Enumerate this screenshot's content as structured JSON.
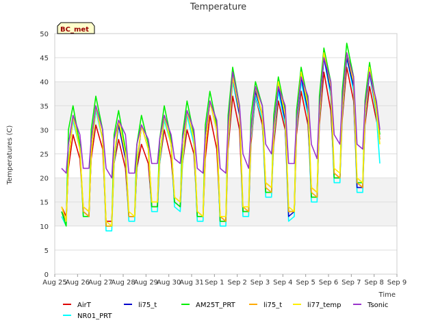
{
  "chart_data": {
    "type": "line",
    "title": "Temperature",
    "xlabel": "Time",
    "ylabel": "Temperatures (C)",
    "ylim": [
      0,
      50
    ],
    "yticks": [
      0,
      5,
      10,
      15,
      20,
      25,
      30,
      35,
      40,
      45,
      50
    ],
    "xticks": [
      "Aug 25",
      "Aug 26",
      "Aug 27",
      "Aug 28",
      "Aug 29",
      "Aug 30",
      "Aug 31",
      "Sep 1",
      "Sep 2",
      "Sep 3",
      "Sep 4",
      "Sep 5",
      "Sep 6",
      "Sep 7",
      "Sep 8",
      "Sep 9"
    ],
    "grid": true,
    "legend_position": "bottom",
    "badge": "BC_met",
    "x_day_index": [
      0.3,
      0.5,
      0.6,
      0.8,
      1.1,
      1.25,
      1.5,
      1.6,
      1.8,
      2.1,
      2.25,
      2.5,
      2.6,
      2.8,
      3.1,
      3.25,
      3.5,
      3.6,
      3.8,
      4.1,
      4.25,
      4.5,
      4.6,
      4.8,
      5.1,
      5.25,
      5.5,
      5.6,
      5.8,
      6.1,
      6.25,
      6.5,
      6.6,
      6.8,
      7.1,
      7.25,
      7.5,
      7.6,
      7.8,
      8.1,
      8.25,
      8.5,
      8.6,
      8.8,
      9.1,
      9.25,
      9.5,
      9.6,
      9.8,
      10.1,
      10.25,
      10.5,
      10.6,
      10.8,
      11.1,
      11.25,
      11.5,
      11.6,
      11.8,
      12.1,
      12.25,
      12.5,
      12.6,
      12.8,
      13.1,
      13.25,
      13.5,
      13.6,
      13.8,
      14.1,
      14.25
    ],
    "series": [
      {
        "name": "AirT",
        "color": "#dd0000",
        "values": [
          14,
          12,
          22,
          29,
          24,
          14,
          13,
          24,
          31,
          26,
          11,
          11,
          23,
          28,
          22,
          12,
          12,
          22,
          27,
          23,
          14,
          14,
          23,
          30,
          24,
          16,
          15,
          23,
          30,
          25,
          13,
          12,
          24,
          33,
          26,
          12,
          11,
          26,
          37,
          30,
          13,
          13,
          27,
          37,
          31,
          19,
          18,
          27,
          36,
          30,
          13,
          13,
          29,
          38,
          31,
          18,
          17,
          31,
          42,
          34,
          21,
          20,
          32,
          43,
          36,
          19,
          18,
          31,
          39,
          32,
          29
        ]
      },
      {
        "name": "NR01_PRT",
        "color": "#00ffff",
        "values": [
          12,
          10,
          24,
          32,
          26,
          12,
          12,
          25,
          34,
          28,
          9,
          9,
          23,
          31,
          24,
          11,
          11,
          22,
          31,
          26,
          13,
          13,
          23,
          32,
          27,
          14,
          13,
          23,
          33,
          27,
          11,
          11,
          26,
          36,
          30,
          10,
          10,
          27,
          40,
          33,
          12,
          12,
          28,
          37,
          32,
          16,
          16,
          28,
          38,
          31,
          11,
          12,
          30,
          40,
          33,
          15,
          15,
          32,
          45,
          37,
          19,
          19,
          33,
          45,
          38,
          17,
          17,
          32,
          42,
          33,
          23
        ]
      },
      {
        "name": "li75_t",
        "color": "#0000cc",
        "values": [
          13,
          11,
          23,
          33,
          26,
          13,
          12,
          25,
          35,
          28,
          10,
          10,
          24,
          31,
          24,
          12,
          12,
          22,
          31,
          26,
          14,
          14,
          24,
          33,
          27,
          15,
          14,
          24,
          34,
          28,
          12,
          12,
          26,
          36,
          30,
          11,
          11,
          28,
          41,
          33,
          13,
          13,
          29,
          38,
          33,
          17,
          17,
          29,
          39,
          32,
          12,
          13,
          31,
          41,
          34,
          16,
          16,
          33,
          45,
          38,
          20,
          20,
          34,
          45,
          39,
          18,
          18,
          33,
          42,
          34,
          28
        ]
      },
      {
        "name": "AM25T_PRT",
        "color": "#00ee00",
        "values": [
          13,
          10,
          30,
          35,
          27,
          12,
          12,
          30,
          37,
          30,
          10,
          10,
          29,
          34,
          26,
          12,
          12,
          27,
          33,
          27,
          14,
          14,
          28,
          35,
          28,
          15,
          14,
          29,
          36,
          29,
          12,
          12,
          31,
          38,
          31,
          11,
          11,
          33,
          43,
          35,
          13,
          13,
          33,
          40,
          35,
          17,
          17,
          33,
          41,
          34,
          13,
          13,
          34,
          43,
          36,
          16,
          16,
          37,
          47,
          40,
          20,
          20,
          38,
          48,
          41,
          19,
          19,
          36,
          44,
          35,
          29
        ]
      },
      {
        "name": "li75_t",
        "color": "#ffaa00",
        "values": [
          14,
          11,
          23,
          33,
          26,
          13,
          12,
          25,
          35,
          28,
          10,
          10,
          24,
          32,
          25,
          12,
          12,
          23,
          31,
          26,
          15,
          15,
          24,
          33,
          27,
          16,
          15,
          24,
          34,
          28,
          13,
          12,
          26,
          36,
          30,
          12,
          11,
          28,
          41,
          34,
          14,
          13,
          29,
          39,
          33,
          18,
          17,
          29,
          40,
          33,
          13,
          13,
          31,
          42,
          35,
          17,
          16,
          33,
          46,
          39,
          21,
          20,
          34,
          46,
          40,
          19,
          18,
          33,
          43,
          34,
          28
        ]
      },
      {
        "name": "li77_temp",
        "color": "#ffee00",
        "values": [
          14,
          11,
          23,
          33,
          26,
          14,
          13,
          25,
          35,
          28,
          11,
          10,
          24,
          32,
          25,
          13,
          12,
          23,
          31,
          26,
          15,
          15,
          24,
          33,
          27,
          16,
          15,
          24,
          34,
          28,
          13,
          12,
          26,
          36,
          30,
          12,
          12,
          28,
          41,
          34,
          14,
          14,
          29,
          39,
          33,
          19,
          18,
          29,
          40,
          33,
          14,
          13,
          31,
          42,
          35,
          18,
          17,
          33,
          46,
          39,
          22,
          21,
          34,
          46,
          40,
          20,
          19,
          33,
          43,
          34,
          27
        ]
      },
      {
        "name": "Tsonic",
        "color": "#9933cc",
        "values": [
          22,
          21,
          27,
          33,
          29,
          22,
          22,
          28,
          35,
          30,
          22,
          20,
          28,
          32,
          29,
          21,
          21,
          27,
          31,
          28,
          23,
          23,
          28,
          33,
          29,
          24,
          23,
          28,
          34,
          30,
          22,
          21,
          29,
          36,
          32,
          22,
          21,
          31,
          42,
          35,
          25,
          22,
          30,
          39,
          35,
          27,
          25,
          31,
          39,
          35,
          23,
          23,
          32,
          41,
          37,
          27,
          24,
          35,
          45,
          40,
          29,
          27,
          36,
          46,
          41,
          27,
          26,
          35,
          42,
          36,
          30
        ]
      }
    ]
  }
}
